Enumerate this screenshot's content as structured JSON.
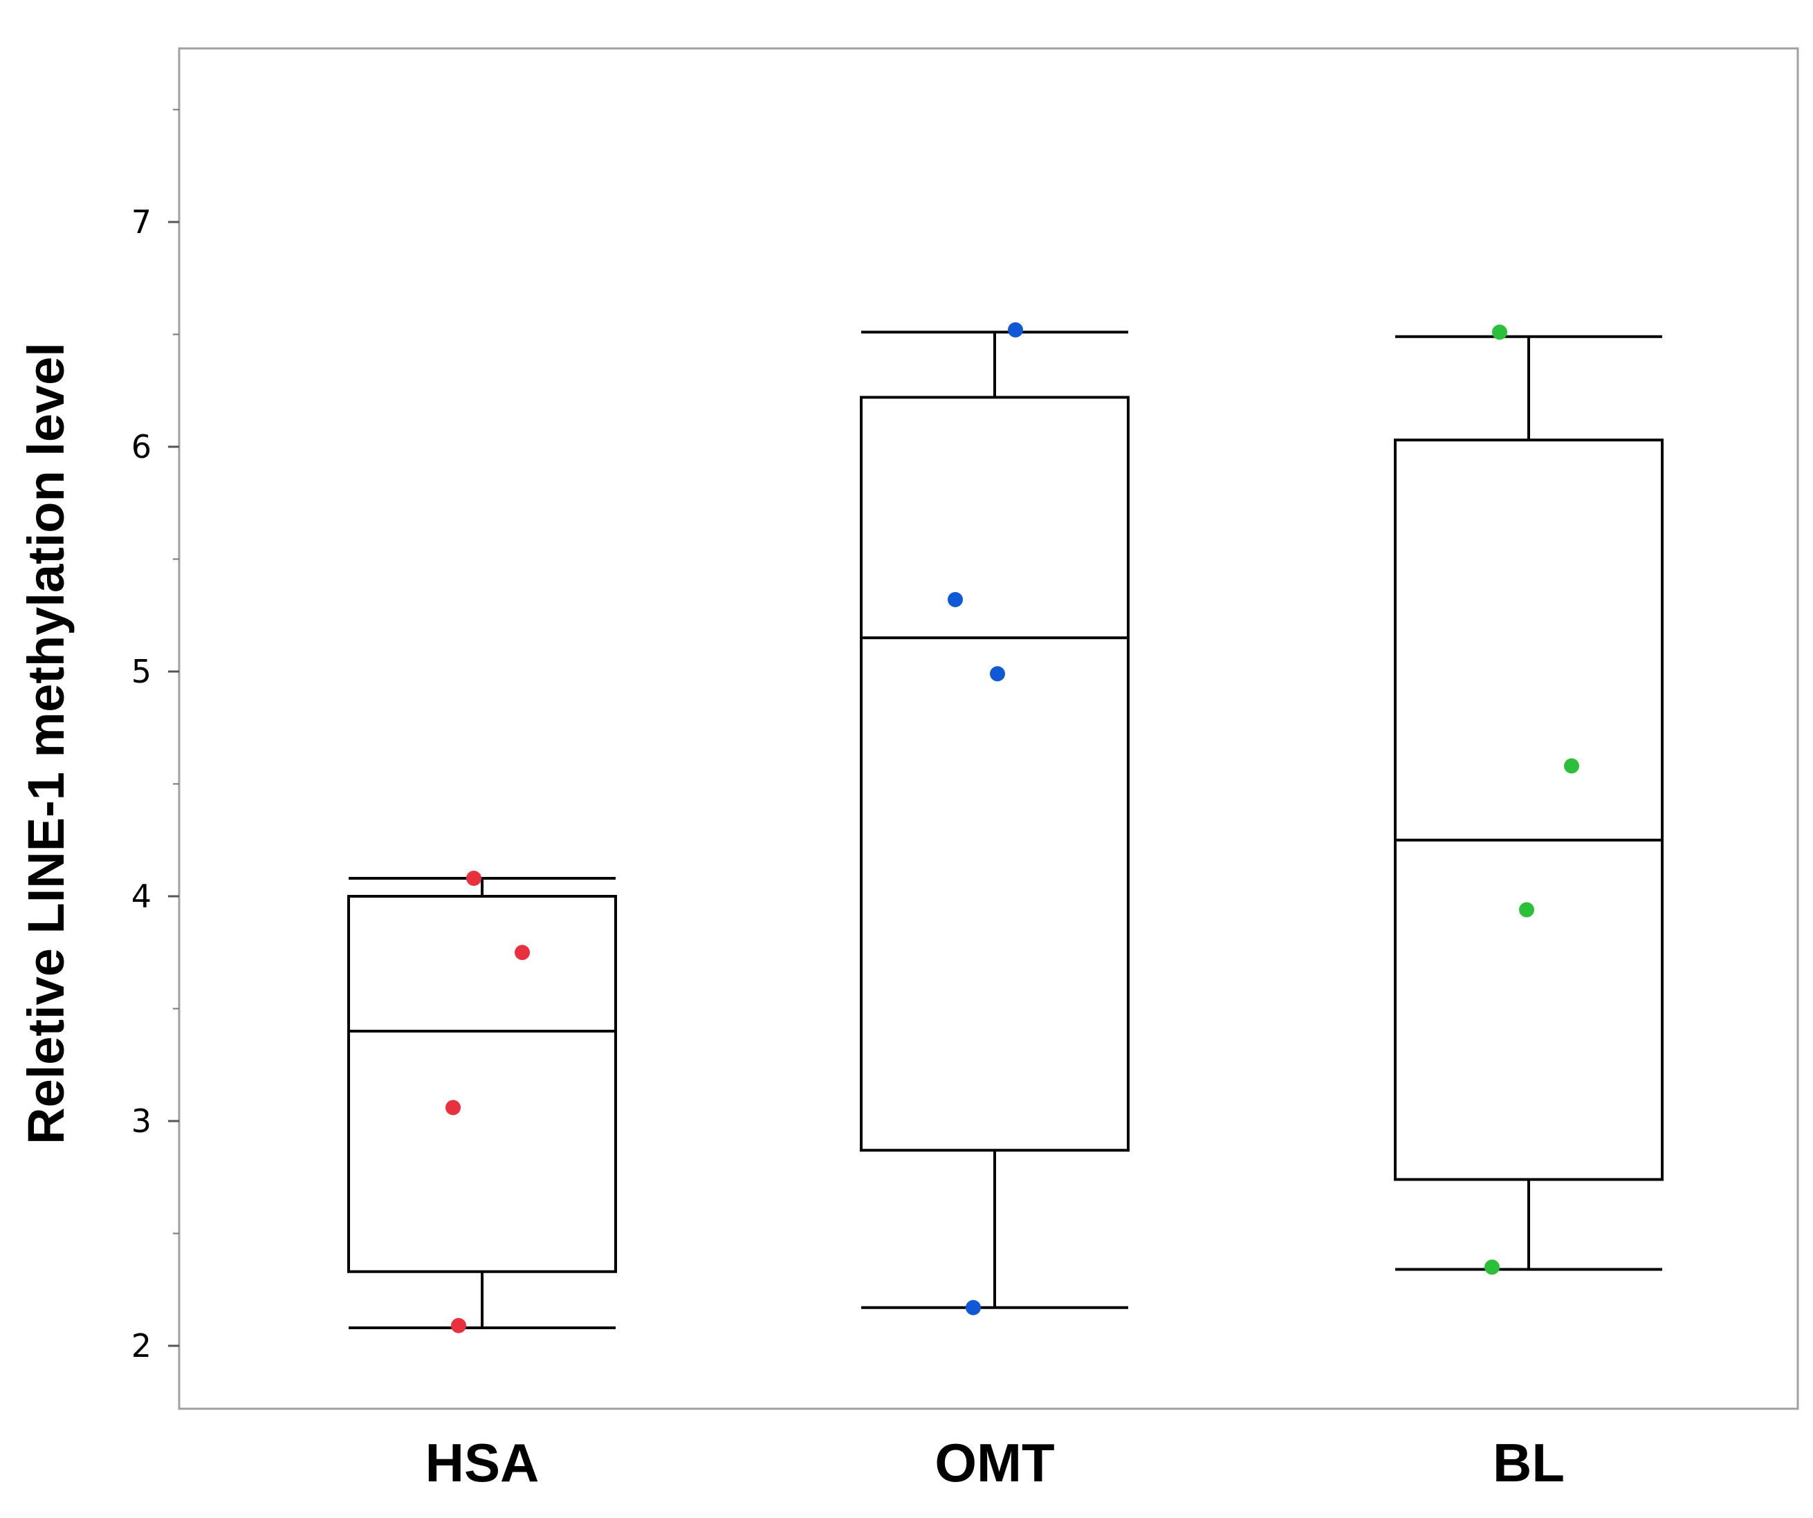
{
  "chart_data": {
    "type": "box",
    "title": "",
    "xlabel": "",
    "ylabel": "Reletive LINE-1 methylation level",
    "ylim": [
      1.8,
      7.75
    ],
    "y_ticks": [
      2,
      3,
      4,
      5,
      6,
      7
    ],
    "y_tick_labels": [
      "2",
      "3",
      "4",
      "5",
      "6",
      "7"
    ],
    "y_minor_ticks": [
      2.5,
      3.5,
      4.5,
      5.5,
      6.5,
      7.5
    ],
    "grid": false,
    "categories": [
      "HSA",
      "OMT",
      "BL"
    ],
    "groups": [
      {
        "name": "HSA",
        "color": "#e8303f",
        "whisker_low": 2.08,
        "q1": 2.33,
        "median": 3.4,
        "q3": 4.0,
        "whisker_high": 4.08,
        "points": [
          4.08,
          3.75,
          3.06,
          2.09
        ]
      },
      {
        "name": "OMT",
        "color": "#1059d6",
        "whisker_low": 2.17,
        "q1": 2.87,
        "median": 5.15,
        "q3": 6.22,
        "whisker_high": 6.51,
        "points": [
          6.52,
          5.32,
          4.99,
          2.17
        ]
      },
      {
        "name": "BL",
        "color": "#2cbf3a",
        "whisker_low": 2.34,
        "q1": 2.74,
        "median": 4.25,
        "q3": 6.03,
        "whisker_high": 6.49,
        "points": [
          6.51,
          4.58,
          3.94,
          2.35
        ]
      }
    ]
  }
}
